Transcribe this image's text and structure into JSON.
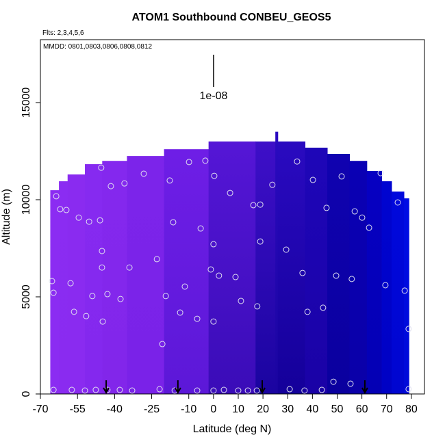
{
  "chart_data": {
    "type": "curtain",
    "title": "ATOM1 Southbound CONBEU_GEOS5",
    "subtitle": "Flts: 2,3,4,5,6",
    "annotation": "MMDD: 0801,0803,0806,0808,0812",
    "scale_label": "1e-08",
    "x_label": "Latitude (deg N)",
    "y_label": "Altitude (m)",
    "xlim": [
      -70,
      85.3
    ],
    "ylim": [
      0,
      18240
    ],
    "xticks": [
      -70,
      -55,
      -40,
      -25,
      -10,
      0,
      10,
      20,
      30,
      40,
      50,
      60,
      70,
      80
    ],
    "yticks": [
      0,
      5000,
      10000,
      15000
    ],
    "point_color": "#e0e0f0",
    "curtain": [
      {
        "lat": [
          -66,
          -62.5
        ],
        "top": 10490,
        "colors": [
          "#8b2cf2",
          "#8b2cf2"
        ]
      },
      {
        "lat": [
          -62.5,
          -59
        ],
        "top": 10950,
        "colors": [
          "#8b2cf2",
          "#8a2bf0"
        ]
      },
      {
        "lat": [
          -59,
          -52
        ],
        "top": 11300,
        "colors": [
          "#8a2bf0",
          "#8a2bf0"
        ]
      },
      {
        "lat": [
          -52,
          -45
        ],
        "top": 11830,
        "colors": [
          "#862af0",
          "#8428ee"
        ]
      },
      {
        "lat": [
          -45,
          -35
        ],
        "top": 12000,
        "colors": [
          "#8428ee",
          "#8226ea"
        ]
      },
      {
        "lat": [
          -35,
          -20
        ],
        "top": 12250,
        "colors": [
          "#7c24ea",
          "#7a22e8"
        ]
      },
      {
        "lat": [
          -20,
          -2
        ],
        "top": 12600,
        "colors": [
          "#6e1ee6",
          "#5c18d8"
        ]
      },
      {
        "lat": [
          -2,
          17
        ],
        "top": 13000,
        "colors": [
          "#5516d6",
          "#3a0cb8"
        ]
      },
      {
        "lat": [
          17,
          25
        ],
        "top": 13000,
        "colors": [
          "#3e0fc8",
          "#1a04a0"
        ]
      },
      {
        "lat": [
          25,
          26
        ],
        "top": 13500,
        "colors": [
          "#2a0ac0",
          "#1a04a0"
        ]
      },
      {
        "lat": [
          26,
          37
        ],
        "top": 13000,
        "colors": [
          "#2a0ac0",
          "#14009a"
        ]
      },
      {
        "lat": [
          37,
          46
        ],
        "top": 12680,
        "colors": [
          "#1e06b8",
          "#1a02a6"
        ]
      },
      {
        "lat": [
          46,
          55
        ],
        "top": 12360,
        "colors": [
          "#1002b0",
          "#0a009e"
        ]
      },
      {
        "lat": [
          55,
          62
        ],
        "top": 12000,
        "colors": [
          "#0a00b4",
          "#0a00a8"
        ]
      },
      {
        "lat": [
          62,
          68
        ],
        "top": 11480,
        "colors": [
          "#0600c2",
          "#0400b4"
        ]
      },
      {
        "lat": [
          68,
          72
        ],
        "top": 10950,
        "colors": [
          "#0004d0",
          "#0002c4"
        ]
      },
      {
        "lat": [
          72,
          77
        ],
        "top": 10420,
        "colors": [
          "#0008dc",
          "#0006d0"
        ]
      },
      {
        "lat": [
          77,
          79
        ],
        "top": 10070,
        "colors": [
          "#000ce4",
          "#000ad8"
        ]
      }
    ],
    "points": {
      "lat": [
        -64.7,
        -57.3,
        -52.0,
        -47.6,
        -42.9,
        -37.9,
        -32.9,
        -21.8,
        -15.7,
        -6.6,
        0.0,
        4.2,
        10.0,
        13.9,
        17.5,
        30.8,
        36.8,
        43.8,
        48.5,
        55.4,
        78.9,
        -65.3,
        -64.7,
        -63.6,
        -62.0,
        -59.5,
        -54.5,
        -50.3,
        -45.9,
        -45.4,
        -41.5,
        -36.0,
        -28.2,
        -17.7,
        -9.9,
        -3.3,
        0.3,
        6.7,
        16.1,
        18.9,
        23.8,
        33.8,
        40.2,
        51.8,
        67.6,
        74.5,
        57.1,
        60.1,
        62.9,
        45.7,
        -16.3,
        -5.2,
        0.0,
        18.9,
        29.4,
        -45.1,
        -45.1,
        -34.0,
        -22.9,
        -1.1,
        2.2,
        8.9,
        36.0,
        49.6,
        55.9,
        69.5,
        77.3,
        -57.8,
        -49.0,
        -42.9,
        -37.6,
        -19.3,
        -11.6,
        11.1,
        17.7,
        44.3,
        -56.4,
        -51.5,
        -44.8,
        -13.5,
        -6.6,
        0.0,
        78.9,
        -20.7,
        38.0
      ],
      "alt": [
        211,
        211,
        176,
        211,
        211,
        211,
        176,
        246,
        176,
        176,
        176,
        211,
        176,
        176,
        176,
        246,
        176,
        211,
        630,
        530,
        250,
        5810,
        5210,
        10180,
        9510,
        9470,
        9080,
        8870,
        8940,
        11650,
        10700,
        10840,
        11340,
        10990,
        11940,
        12010,
        11230,
        10350,
        9720,
        9750,
        10770,
        11970,
        11020,
        11200,
        11370,
        9860,
        9400,
        9080,
        8560,
        9580,
        8840,
        8520,
        7710,
        7850,
        7430,
        7360,
        6510,
        6510,
        6940,
        6410,
        6090,
        6020,
        6230,
        6090,
        5920,
        5600,
        5320,
        5700,
        5040,
        5140,
        4890,
        5040,
        5530,
        4790,
        4510,
        4440,
        4230,
        4010,
        3730,
        4190,
        3870,
        3730,
        3350,
        2570,
        4230
      ]
    },
    "flight_markers": [
      -43.4,
      -14.4,
      19.7,
      61.2
    ]
  }
}
